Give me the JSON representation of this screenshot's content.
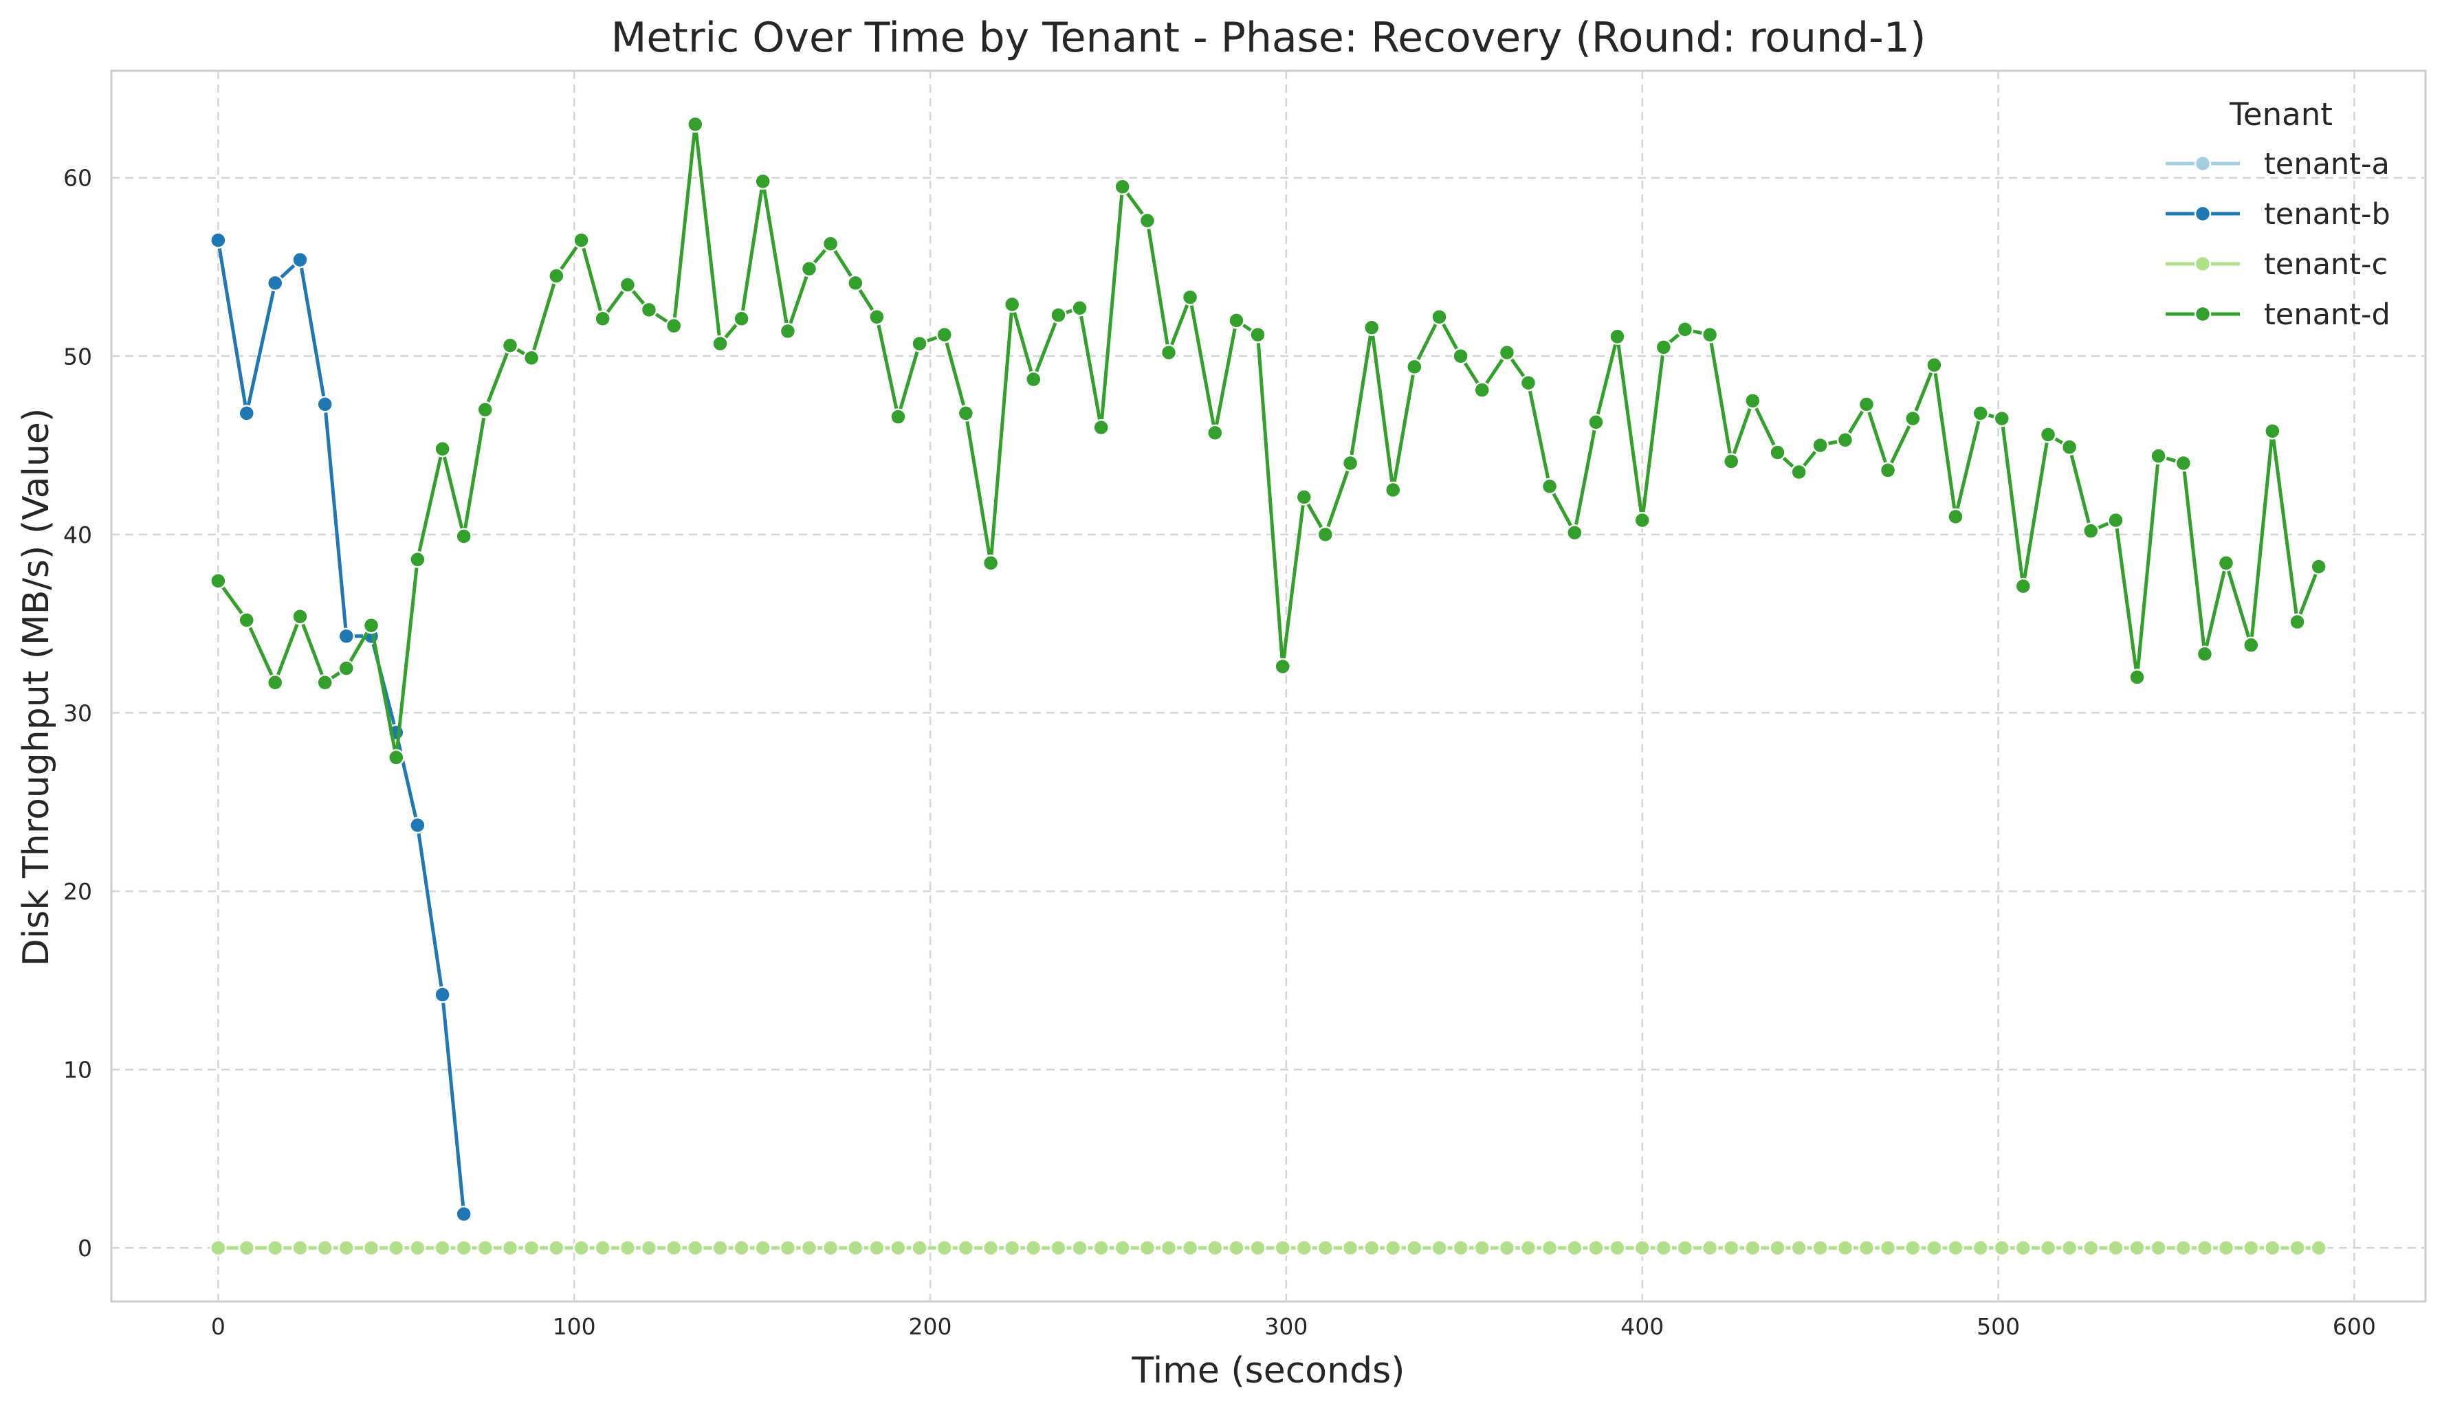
{
  "chart_data": {
    "type": "line",
    "title": "Metric Over Time by Tenant - Phase: Recovery (Round: round-1)",
    "xlabel": "Time (seconds)",
    "ylabel": "Disk Throughput (MB/s) (Value)",
    "xlim": [
      -30,
      620
    ],
    "ylim": [
      -3,
      66
    ],
    "xticks": [
      0,
      100,
      200,
      300,
      400,
      500,
      600
    ],
    "yticks": [
      0,
      10,
      20,
      30,
      40,
      50,
      60
    ],
    "grid": true,
    "legend": {
      "title": "Tenant",
      "position": "top-right"
    },
    "series": [
      {
        "name": "tenant-a",
        "color": "#a6cee3",
        "x": [
          0,
          8,
          16,
          23,
          30,
          36,
          43,
          50,
          56,
          63,
          69,
          75,
          82,
          88,
          95,
          102,
          108,
          115,
          121,
          128,
          134,
          141,
          147,
          153,
          160,
          166,
          172,
          179,
          185,
          191,
          197,
          204,
          210,
          217,
          223,
          229,
          236,
          242,
          248,
          254,
          261,
          267,
          273,
          280,
          286,
          292,
          299,
          305,
          311,
          318,
          324,
          330,
          336,
          343,
          349,
          355,
          362,
          368,
          374,
          381,
          387,
          393,
          400,
          406,
          412,
          419,
          425,
          431,
          438,
          444,
          450,
          457,
          463,
          469,
          476,
          482,
          488,
          495,
          501,
          507,
          514,
          520,
          526,
          533,
          539,
          545,
          552,
          558,
          564,
          571,
          577,
          584,
          590
        ],
        "values": [
          0,
          0,
          0,
          0,
          0,
          0,
          0,
          0,
          0,
          0,
          0,
          0,
          0,
          0,
          0,
          0,
          0,
          0,
          0,
          0,
          0,
          0,
          0,
          0,
          0,
          0,
          0,
          0,
          0,
          0,
          0,
          0,
          0,
          0,
          0,
          0,
          0,
          0,
          0,
          0,
          0,
          0,
          0,
          0,
          0,
          0,
          0,
          0,
          0,
          0,
          0,
          0,
          0,
          0,
          0,
          0,
          0,
          0,
          0,
          0,
          0,
          0,
          0,
          0,
          0,
          0,
          0,
          0,
          0,
          0,
          0,
          0,
          0,
          0,
          0,
          0,
          0,
          0,
          0,
          0,
          0,
          0,
          0,
          0,
          0,
          0,
          0,
          0,
          0,
          0,
          0,
          0,
          0
        ]
      },
      {
        "name": "tenant-b",
        "color": "#1f78b4",
        "x": [
          0,
          8,
          16,
          23,
          30,
          36,
          43,
          50,
          56,
          63,
          69
        ],
        "values": [
          56.5,
          46.8,
          54.1,
          55.4,
          47.3,
          34.3,
          34.3,
          28.9,
          23.7,
          14.2,
          1.9
        ]
      },
      {
        "name": "tenant-c",
        "color": "#b2df8a",
        "x": [
          0,
          8,
          16,
          23,
          30,
          36,
          43,
          50,
          56,
          63,
          69,
          75,
          82,
          88,
          95,
          102,
          108,
          115,
          121,
          128,
          134,
          141,
          147,
          153,
          160,
          166,
          172,
          179,
          185,
          191,
          197,
          204,
          210,
          217,
          223,
          229,
          236,
          242,
          248,
          254,
          261,
          267,
          273,
          280,
          286,
          292,
          299,
          305,
          311,
          318,
          324,
          330,
          336,
          343,
          349,
          355,
          362,
          368,
          374,
          381,
          387,
          393,
          400,
          406,
          412,
          419,
          425,
          431,
          438,
          444,
          450,
          457,
          463,
          469,
          476,
          482,
          488,
          495,
          501,
          507,
          514,
          520,
          526,
          533,
          539,
          545,
          552,
          558,
          564,
          571,
          577,
          584,
          590
        ],
        "values": [
          0,
          0,
          0,
          0,
          0,
          0,
          0,
          0,
          0,
          0,
          0,
          0,
          0,
          0,
          0,
          0,
          0,
          0,
          0,
          0,
          0,
          0,
          0,
          0,
          0,
          0,
          0,
          0,
          0,
          0,
          0,
          0,
          0,
          0,
          0,
          0,
          0,
          0,
          0,
          0,
          0,
          0,
          0,
          0,
          0,
          0,
          0,
          0,
          0,
          0,
          0,
          0,
          0,
          0,
          0,
          0,
          0,
          0,
          0,
          0,
          0,
          0,
          0,
          0,
          0,
          0,
          0,
          0,
          0,
          0,
          0,
          0,
          0,
          0,
          0,
          0,
          0,
          0,
          0,
          0,
          0,
          0,
          0,
          0,
          0,
          0,
          0,
          0,
          0,
          0,
          0,
          0,
          0
        ]
      },
      {
        "name": "tenant-d",
        "color": "#33a02c",
        "x": [
          0,
          8,
          16,
          23,
          30,
          36,
          43,
          50,
          56,
          63,
          69,
          75,
          82,
          88,
          95,
          102,
          108,
          115,
          121,
          128,
          134,
          141,
          147,
          153,
          160,
          166,
          172,
          179,
          185,
          191,
          197,
          204,
          210,
          217,
          223,
          229,
          236,
          242,
          248,
          254,
          261,
          267,
          273,
          280,
          286,
          292,
          299,
          305,
          311,
          318,
          324,
          330,
          336,
          343,
          349,
          355,
          362,
          368,
          374,
          381,
          387,
          393,
          400,
          406,
          412,
          419,
          425,
          431,
          438,
          444,
          450,
          457,
          463,
          469,
          476,
          482,
          488,
          495,
          501,
          507,
          514,
          520,
          526,
          533,
          539,
          545,
          552,
          558,
          564,
          571,
          577,
          584,
          590
        ],
        "values": [
          37.4,
          35.2,
          31.7,
          35.4,
          31.7,
          32.5,
          34.9,
          27.5,
          38.6,
          44.8,
          39.9,
          47.0,
          50.6,
          49.9,
          54.5,
          56.5,
          52.1,
          54.0,
          52.6,
          51.7,
          63.0,
          50.7,
          52.1,
          59.8,
          51.4,
          54.9,
          56.3,
          54.1,
          52.2,
          46.6,
          50.7,
          51.2,
          46.8,
          38.4,
          52.9,
          48.7,
          52.3,
          52.7,
          46.0,
          59.5,
          57.6,
          50.2,
          53.3,
          45.7,
          52.0,
          51.2,
          32.6,
          42.1,
          40.0,
          44.0,
          51.6,
          42.5,
          49.4,
          52.2,
          50.0,
          48.1,
          50.2,
          48.5,
          42.7,
          40.1,
          46.3,
          51.1,
          40.8,
          50.5,
          51.5,
          51.2,
          44.1,
          47.5,
          44.6,
          43.5,
          45.0,
          45.3,
          47.3,
          43.6,
          46.5,
          49.5,
          41.0,
          46.8,
          46.5,
          37.1,
          45.6,
          44.9,
          40.2,
          40.8,
          32.0,
          44.4,
          44.0,
          33.3,
          38.4,
          33.8,
          45.8,
          35.1,
          38.2
        ]
      }
    ]
  }
}
